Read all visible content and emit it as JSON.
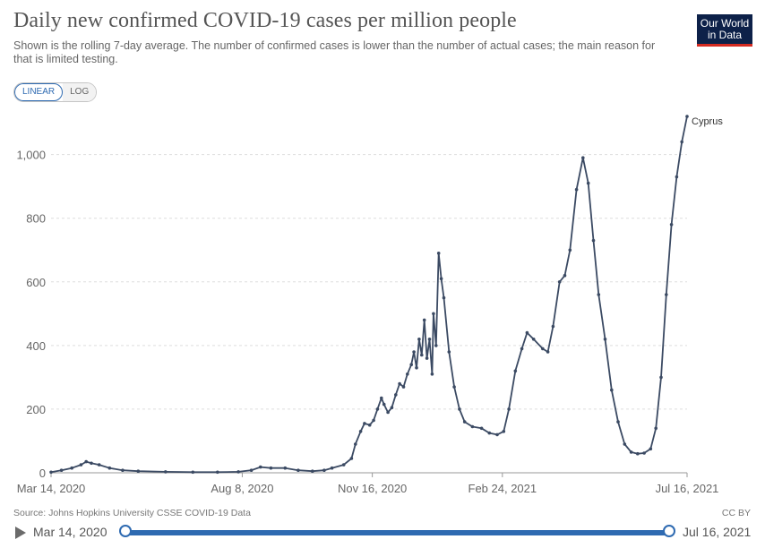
{
  "header": {
    "title": "Daily new confirmed COVID-19 cases per million people",
    "subtitle": "Shown is the rolling 7-day average. The number of confirmed cases is lower than the number of actual cases; the main reason for that is limited testing.",
    "logo_line1": "Our World",
    "logo_line2": "in Data"
  },
  "controls": {
    "scale_linear": "LINEAR",
    "scale_log": "LOG",
    "selected_scale": "LINEAR"
  },
  "footer": {
    "source": "Source: Johns Hopkins University CSSE COVID-19 Data",
    "license": "CC BY"
  },
  "timeline": {
    "start_label": "Mar 14, 2020",
    "end_label": "Jul 16, 2021"
  },
  "colors": {
    "line": "#3b4a63",
    "grid": "#dddddd",
    "accent": "#2e6ab1",
    "logo_bg": "#0d2149",
    "logo_bar": "#d42b21"
  },
  "chart_data": {
    "type": "line",
    "title": "Daily new confirmed COVID-19 cases per million people",
    "ylim": [
      0,
      1120
    ],
    "yticks": [
      0,
      200,
      400,
      600,
      800,
      1000
    ],
    "ytick_labels": [
      "0",
      "200",
      "400",
      "600",
      "800",
      "1,000"
    ],
    "xticks": [
      "2020-03-14",
      "2020-08-08",
      "2020-11-16",
      "2021-02-24",
      "2021-07-16"
    ],
    "xtick_labels": [
      "Mar 14, 2020",
      "Aug 8, 2020",
      "Nov 16, 2020",
      "Feb 24, 2021",
      "Jul 16, 2021"
    ],
    "xlim": [
      "2020-03-14",
      "2021-07-16"
    ],
    "grid": true,
    "series": [
      {
        "name": "Cyprus",
        "points": [
          [
            "2020-03-14",
            2
          ],
          [
            "2020-03-22",
            8
          ],
          [
            "2020-03-30",
            15
          ],
          [
            "2020-04-06",
            25
          ],
          [
            "2020-04-10",
            35
          ],
          [
            "2020-04-14",
            30
          ],
          [
            "2020-04-20",
            25
          ],
          [
            "2020-04-28",
            15
          ],
          [
            "2020-05-08",
            8
          ],
          [
            "2020-05-20",
            5
          ],
          [
            "2020-06-10",
            3
          ],
          [
            "2020-07-01",
            2
          ],
          [
            "2020-07-20",
            2
          ],
          [
            "2020-08-05",
            3
          ],
          [
            "2020-08-15",
            8
          ],
          [
            "2020-08-22",
            18
          ],
          [
            "2020-08-30",
            15
          ],
          [
            "2020-09-10",
            15
          ],
          [
            "2020-09-20",
            8
          ],
          [
            "2020-10-01",
            5
          ],
          [
            "2020-10-10",
            8
          ],
          [
            "2020-10-16",
            15
          ],
          [
            "2020-10-25",
            25
          ],
          [
            "2020-10-31",
            45
          ],
          [
            "2020-11-03",
            90
          ],
          [
            "2020-11-07",
            130
          ],
          [
            "2020-11-10",
            155
          ],
          [
            "2020-11-14",
            150
          ],
          [
            "2020-11-17",
            165
          ],
          [
            "2020-11-20",
            200
          ],
          [
            "2020-11-23",
            235
          ],
          [
            "2020-11-25",
            215
          ],
          [
            "2020-11-28",
            190
          ],
          [
            "2020-12-01",
            205
          ],
          [
            "2020-12-04",
            245
          ],
          [
            "2020-12-07",
            280
          ],
          [
            "2020-12-10",
            270
          ],
          [
            "2020-12-13",
            310
          ],
          [
            "2020-12-16",
            340
          ],
          [
            "2020-12-18",
            380
          ],
          [
            "2020-12-20",
            330
          ],
          [
            "2020-12-22",
            420
          ],
          [
            "2020-12-24",
            370
          ],
          [
            "2020-12-26",
            480
          ],
          [
            "2020-12-28",
            360
          ],
          [
            "2020-12-30",
            420
          ],
          [
            "2021-01-01",
            310
          ],
          [
            "2021-01-02",
            500
          ],
          [
            "2021-01-04",
            400
          ],
          [
            "2021-01-06",
            690
          ],
          [
            "2021-01-08",
            610
          ],
          [
            "2021-01-10",
            550
          ],
          [
            "2021-01-14",
            380
          ],
          [
            "2021-01-18",
            270
          ],
          [
            "2021-01-22",
            200
          ],
          [
            "2021-01-26",
            160
          ],
          [
            "2021-02-01",
            145
          ],
          [
            "2021-02-08",
            140
          ],
          [
            "2021-02-14",
            125
          ],
          [
            "2021-02-20",
            120
          ],
          [
            "2021-02-25",
            130
          ],
          [
            "2021-03-01",
            200
          ],
          [
            "2021-03-06",
            320
          ],
          [
            "2021-03-11",
            390
          ],
          [
            "2021-03-15",
            440
          ],
          [
            "2021-03-20",
            420
          ],
          [
            "2021-03-27",
            390
          ],
          [
            "2021-03-31",
            380
          ],
          [
            "2021-04-04",
            460
          ],
          [
            "2021-04-09",
            600
          ],
          [
            "2021-04-13",
            620
          ],
          [
            "2021-04-17",
            700
          ],
          [
            "2021-04-22",
            890
          ],
          [
            "2021-04-27",
            990
          ],
          [
            "2021-05-01",
            910
          ],
          [
            "2021-05-05",
            730
          ],
          [
            "2021-05-09",
            560
          ],
          [
            "2021-05-14",
            420
          ],
          [
            "2021-05-19",
            260
          ],
          [
            "2021-05-24",
            160
          ],
          [
            "2021-05-29",
            90
          ],
          [
            "2021-06-03",
            65
          ],
          [
            "2021-06-08",
            60
          ],
          [
            "2021-06-13",
            62
          ],
          [
            "2021-06-18",
            75
          ],
          [
            "2021-06-22",
            140
          ],
          [
            "2021-06-26",
            300
          ],
          [
            "2021-06-30",
            560
          ],
          [
            "2021-07-04",
            780
          ],
          [
            "2021-07-08",
            930
          ],
          [
            "2021-07-12",
            1040
          ],
          [
            "2021-07-16",
            1120
          ]
        ]
      }
    ]
  }
}
